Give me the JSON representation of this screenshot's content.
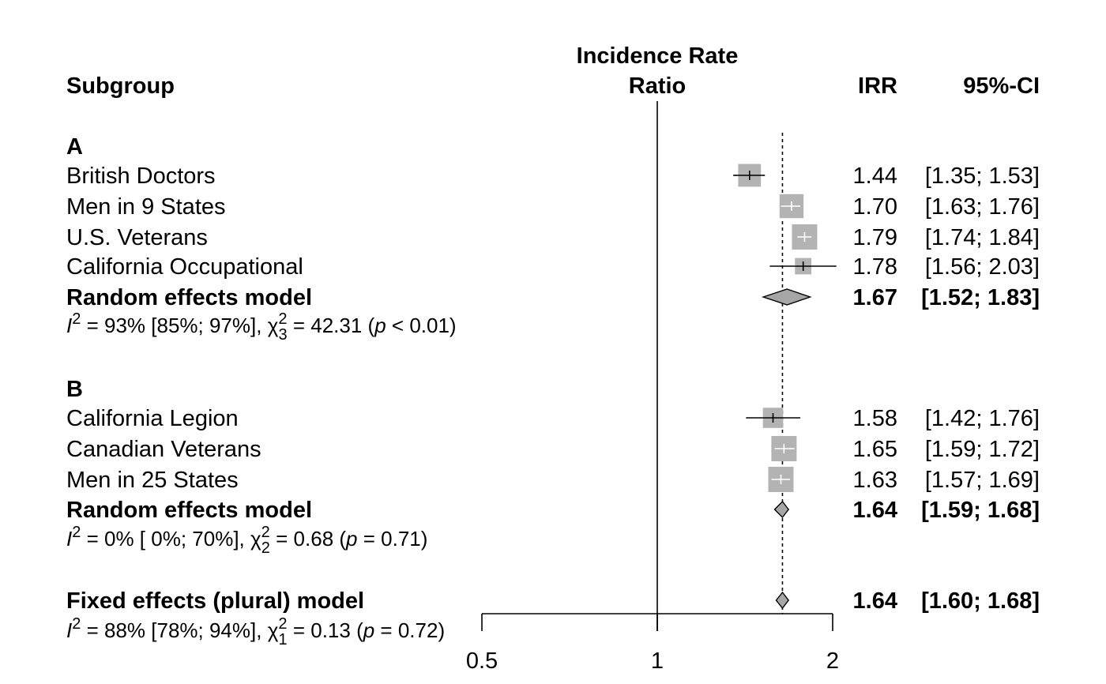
{
  "chart_data": {
    "type": "forest",
    "column_headers": {
      "subgroup": "Subgroup",
      "effect_line1": "Incidence Rate",
      "effect_line2": "Ratio",
      "estimate": "IRR",
      "ci": "95%-CI"
    },
    "x_axis": {
      "scale": "log",
      "range": [
        0.5,
        2
      ],
      "ticks": [
        0.5,
        1,
        2
      ],
      "tick_labels": [
        "0.5",
        "1",
        "2"
      ],
      "null_value": 1,
      "reference_value": 1.64
    },
    "colors": {
      "square": "#b3b3b3",
      "diamond": "#a6a6a6",
      "line": "#000000",
      "ci_line_inside_square": "#ffffff"
    },
    "subgroups": [
      {
        "label": "A",
        "studies": [
          {
            "name": "British Doctors",
            "est": 1.44,
            "lo": 1.35,
            "hi": 1.53,
            "est_text": "1.44",
            "ci_text": "[1.35; 1.53]",
            "weight": 0.9
          },
          {
            "name": "Men in 9 States",
            "est": 1.7,
            "lo": 1.63,
            "hi": 1.76,
            "est_text": "1.70",
            "ci_text": "[1.63; 1.76]",
            "weight": 0.95
          },
          {
            "name": "U.S. Veterans",
            "est": 1.79,
            "lo": 1.74,
            "hi": 1.84,
            "est_text": "1.79",
            "ci_text": "[1.74; 1.84]",
            "weight": 1.0
          },
          {
            "name": "California Occupational",
            "est": 1.78,
            "lo": 1.56,
            "hi": 2.03,
            "est_text": "1.78",
            "ci_text": "[1.56; 2.03]",
            "weight": 0.65
          }
        ],
        "pooled": {
          "name": "Random effects model",
          "est": 1.67,
          "lo": 1.52,
          "hi": 1.83,
          "est_text": "1.67",
          "ci_text": "[1.52; 1.83]"
        },
        "het": {
          "i2": "93% [85%; 97%]",
          "df": "3",
          "chi2": "42.31",
          "p_rel": "<",
          "p": "0.01"
        }
      },
      {
        "label": "B",
        "studies": [
          {
            "name": "California Legion",
            "est": 1.58,
            "lo": 1.42,
            "hi": 1.76,
            "est_text": "1.58",
            "ci_text": "[1.42; 1.76]",
            "weight": 0.8
          },
          {
            "name": "Canadian Veterans",
            "est": 1.65,
            "lo": 1.59,
            "hi": 1.72,
            "est_text": "1.65",
            "ci_text": "[1.59; 1.72]",
            "weight": 1.0
          },
          {
            "name": "Men in 25 States",
            "est": 1.63,
            "lo": 1.57,
            "hi": 1.69,
            "est_text": "1.63",
            "ci_text": "[1.57; 1.69]",
            "weight": 1.0
          }
        ],
        "pooled": {
          "name": "Random effects model",
          "est": 1.64,
          "lo": 1.59,
          "hi": 1.68,
          "est_text": "1.64",
          "ci_text": "[1.59; 1.68]"
        },
        "het": {
          "i2": "0% [ 0%; 70%]",
          "df": "2",
          "chi2": "0.68",
          "p_rel": "=",
          "p": "0.71"
        }
      }
    ],
    "overall": {
      "name": "Fixed effects (plural) model",
      "est": 1.64,
      "lo": 1.6,
      "hi": 1.68,
      "est_text": "1.64",
      "ci_text": "[1.60; 1.68]",
      "het": {
        "i2": "88% [78%; 94%]",
        "df": "1",
        "chi2": "0.13",
        "p_rel": "=",
        "p": "0.72"
      }
    }
  }
}
